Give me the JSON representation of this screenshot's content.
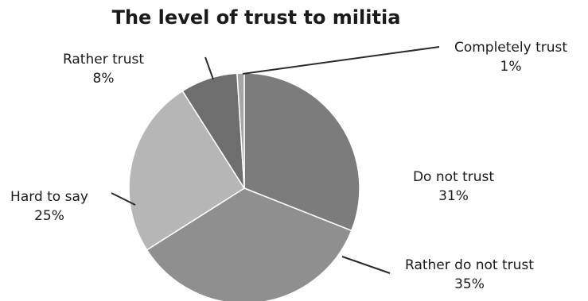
{
  "chart_data": {
    "type": "pie",
    "title": "The level of trust to militia",
    "slices": [
      {
        "label": "Do not trust",
        "value": 31,
        "value_label": "31%",
        "color": "#7c7c7c"
      },
      {
        "label": "Rather do not trust",
        "value": 35,
        "value_label": "35%",
        "color": "#8f8f8f"
      },
      {
        "label": "Hard to say",
        "value": 25,
        "value_label": "25%",
        "color": "#b6b6b6"
      },
      {
        "label": "Rather trust",
        "value": 8,
        "value_label": "8%",
        "color": "#6e6e6e"
      },
      {
        "label": "Completely trust",
        "value": 1,
        "value_label": "1%",
        "color": "#a6a6a6"
      }
    ],
    "legend": "none",
    "data_labels": "outside with leader lines"
  }
}
